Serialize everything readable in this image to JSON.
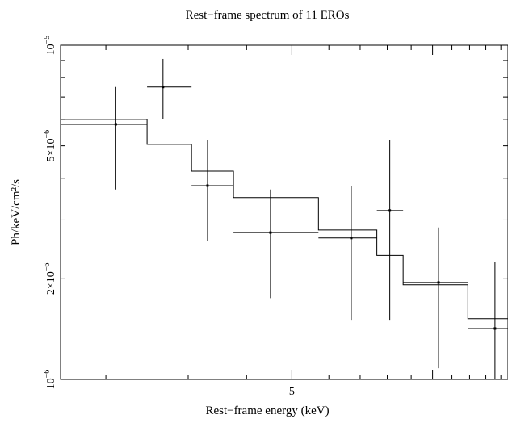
{
  "chart_data": {
    "type": "scatter",
    "title": "Rest−frame spectrum of 11 EROs",
    "xlabel": "Rest−frame energy (keV)",
    "ylabel": "Ph/keV/cm²/s",
    "x_scale": "log",
    "y_scale": "log",
    "xlim": [
      1.6,
      14.5
    ],
    "ylim": [
      1e-06,
      1e-05
    ],
    "x_ticks": [
      {
        "value": 5,
        "label": "5"
      }
    ],
    "y_ticks": [
      {
        "value": 1e-05,
        "mantissa": "10",
        "exponent": "−5"
      },
      {
        "value": 5e-06,
        "mantissa": "5×10",
        "exponent": "−6"
      },
      {
        "value": 2e-06,
        "mantissa": "2×10",
        "exponent": "−6"
      },
      {
        "value": 1e-06,
        "mantissa": "10",
        "exponent": "−6"
      }
    ],
    "grid": false,
    "data_points": [
      {
        "x": 2.1,
        "xlo": 1.6,
        "xhi": 2.45,
        "y": 5.8e-06,
        "ylo": 3.7e-06,
        "yhi": 7.5e-06
      },
      {
        "x": 2.65,
        "xlo": 2.45,
        "xhi": 3.05,
        "y": 7.5e-06,
        "ylo": 6e-06,
        "yhi": 9.1e-06
      },
      {
        "x": 3.3,
        "xlo": 3.05,
        "xhi": 3.75,
        "y": 3.8e-06,
        "ylo": 2.6e-06,
        "yhi": 5.2e-06
      },
      {
        "x": 4.5,
        "xlo": 3.75,
        "xhi": 5.7,
        "y": 2.75e-06,
        "ylo": 1.75e-06,
        "yhi": 3.7e-06
      },
      {
        "x": 6.7,
        "xlo": 5.7,
        "xhi": 7.6,
        "y": 2.65e-06,
        "ylo": 1.5e-06,
        "yhi": 3.8e-06
      },
      {
        "x": 8.1,
        "xlo": 7.6,
        "xhi": 8.65,
        "y": 3.2e-06,
        "ylo": 1.5e-06,
        "yhi": 5.2e-06
      },
      {
        "x": 10.3,
        "xlo": 8.65,
        "xhi": 11.9,
        "y": 1.95e-06,
        "ylo": 1.08e-06,
        "yhi": 2.85e-06
      },
      {
        "x": 13.6,
        "xlo": 11.9,
        "xhi": 14.5,
        "y": 1.42e-06,
        "ylo": 1e-06,
        "yhi": 2.25e-06
      }
    ],
    "model_steps": [
      {
        "xlo": 1.6,
        "xhi": 2.45,
        "y": 6e-06
      },
      {
        "xlo": 2.45,
        "xhi": 3.05,
        "y": 5.05e-06
      },
      {
        "xlo": 3.05,
        "xhi": 3.75,
        "y": 4.2e-06
      },
      {
        "xlo": 3.75,
        "xhi": 5.7,
        "y": 3.5e-06
      },
      {
        "xlo": 5.7,
        "xhi": 7.6,
        "y": 2.8e-06
      },
      {
        "xlo": 7.6,
        "xhi": 8.65,
        "y": 2.35e-06
      },
      {
        "xlo": 8.65,
        "xhi": 11.9,
        "y": 1.92e-06
      },
      {
        "xlo": 11.9,
        "xhi": 14.5,
        "y": 1.52e-06
      }
    ],
    "colors": {
      "foreground": "#000000",
      "background": "#ffffff"
    }
  }
}
